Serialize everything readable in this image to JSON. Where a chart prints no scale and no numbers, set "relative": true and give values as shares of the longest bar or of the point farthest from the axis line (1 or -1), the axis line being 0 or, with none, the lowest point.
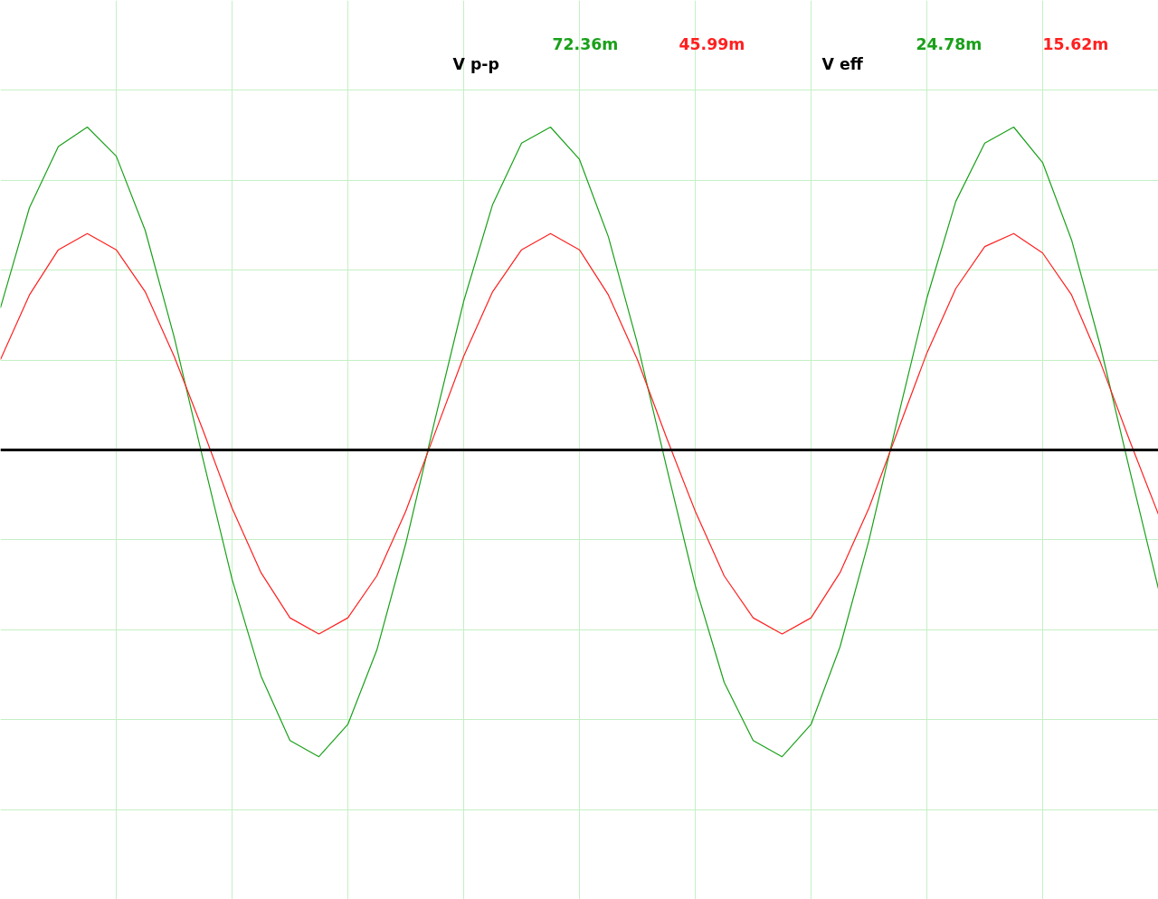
{
  "chart_data": {
    "type": "line",
    "relative": true,
    "grid": true,
    "categories": [
      null,
      null,
      null,
      null,
      null,
      null,
      null,
      null,
      null,
      null,
      null,
      null,
      null,
      null,
      null,
      null,
      null,
      null,
      null,
      null,
      null,
      null,
      null,
      null,
      null,
      null,
      null,
      null,
      null,
      null,
      null,
      null,
      null,
      null,
      null,
      null,
      null,
      null,
      null,
      null,
      null
    ],
    "series": [
      {
        "color": "#1aa01a",
        "values": [
          0.44,
          0.75,
          0.94,
          1.0,
          0.91,
          0.68,
          0.35,
          -0.03,
          -0.4,
          -0.7,
          -0.9,
          -0.95,
          -0.85,
          -0.62,
          -0.29,
          0.09,
          0.46,
          0.76,
          0.95,
          1.0,
          0.9,
          0.66,
          0.33,
          -0.05,
          -0.42,
          -0.72,
          -0.9,
          -0.95,
          -0.85,
          -0.61,
          -0.28,
          0.1,
          0.47,
          0.77,
          0.95,
          1.0,
          0.89,
          0.65,
          0.32,
          -0.06,
          -0.43
        ]
      },
      {
        "color": "#ff2020",
        "values": [
          0.28,
          0.48,
          0.62,
          0.67,
          0.62,
          0.49,
          0.29,
          0.06,
          -0.18,
          -0.38,
          -0.52,
          -0.57,
          -0.52,
          -0.39,
          -0.19,
          0.05,
          0.29,
          0.49,
          0.62,
          0.67,
          0.62,
          0.48,
          0.28,
          0.04,
          -0.19,
          -0.39,
          -0.52,
          -0.57,
          -0.52,
          -0.38,
          -0.18,
          0.06,
          0.3,
          0.5,
          0.63,
          0.67,
          0.61,
          0.48,
          0.27,
          0.03,
          -0.2
        ]
      }
    ],
    "annotations": [
      "V p-p",
      "72.36m",
      "45.99m",
      "V eff",
      "24.78m",
      "15.62m"
    ]
  }
}
